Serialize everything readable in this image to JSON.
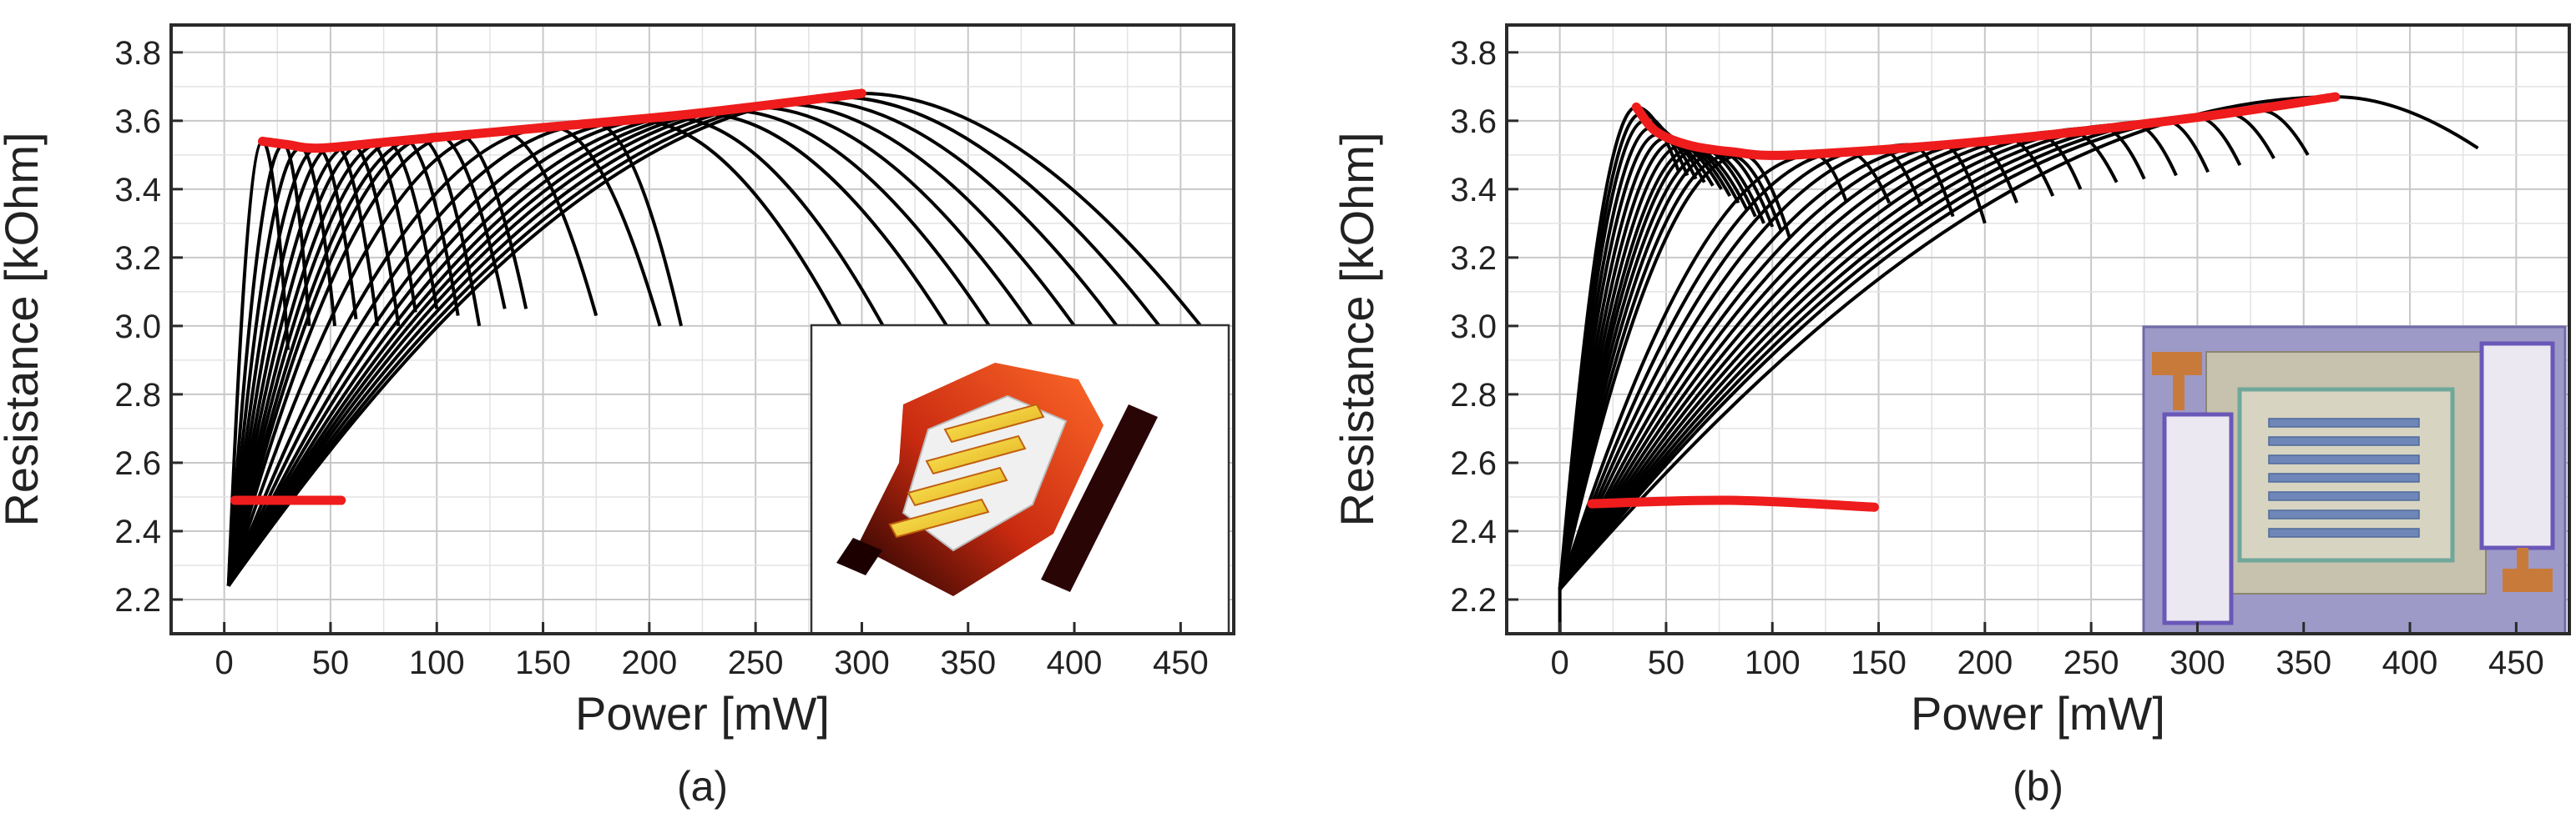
{
  "chart_data": [
    {
      "type": "line",
      "panel_label": "(a)",
      "xlabel": "Power [mW]",
      "ylabel": "Resistance [kOhm]",
      "xlim": [
        -25,
        475
      ],
      "ylim": [
        2.1,
        3.88
      ],
      "x_ticks": [
        0,
        50,
        100,
        150,
        200,
        250,
        300,
        350,
        400,
        450
      ],
      "y_ticks": [
        2.2,
        2.4,
        2.6,
        2.8,
        3.0,
        3.2,
        3.4,
        3.6,
        3.8
      ],
      "grid": true,
      "curve_color": "#000000",
      "envelope_color": "#ee1c1c",
      "start_point": [
        2,
        2.24
      ],
      "curves": [
        [
          [
            18,
            3.54
          ],
          [
            30,
            2.93
          ]
        ],
        [
          [
            28,
            3.53
          ],
          [
            40,
            3.0
          ]
        ],
        [
          [
            36,
            3.52
          ],
          [
            52,
            3.0
          ]
        ],
        [
          [
            44,
            3.52
          ],
          [
            62,
            3.02
          ]
        ],
        [
          [
            52,
            3.53
          ],
          [
            72,
            3.0
          ]
        ],
        [
          [
            60,
            3.53
          ],
          [
            82,
            3.0
          ]
        ],
        [
          [
            68,
            3.54
          ],
          [
            90,
            3.04
          ]
        ],
        [
          [
            76,
            3.54
          ],
          [
            100,
            3.05
          ]
        ],
        [
          [
            84,
            3.55
          ],
          [
            110,
            3.03
          ]
        ],
        [
          [
            92,
            3.55
          ],
          [
            120,
            3.0
          ]
        ],
        [
          [
            100,
            3.56
          ],
          [
            132,
            3.05
          ]
        ],
        [
          [
            110,
            3.56
          ],
          [
            142,
            3.05
          ]
        ],
        [
          [
            130,
            3.57
          ],
          [
            175,
            3.03
          ]
        ],
        [
          [
            155,
            3.58
          ],
          [
            205,
            3.0
          ]
        ],
        [
          [
            175,
            3.59
          ],
          [
            215,
            3.0
          ]
        ],
        [
          [
            195,
            3.6
          ],
          [
            290,
            3.0
          ]
        ],
        [
          [
            210,
            3.61
          ],
          [
            310,
            3.0
          ]
        ],
        [
          [
            225,
            3.62
          ],
          [
            340,
            3.0
          ]
        ],
        [
          [
            238,
            3.63
          ],
          [
            360,
            3.0
          ]
        ],
        [
          [
            250,
            3.64
          ],
          [
            380,
            3.0
          ]
        ],
        [
          [
            262,
            3.65
          ],
          [
            400,
            3.0
          ]
        ],
        [
          [
            275,
            3.66
          ],
          [
            420,
            3.0
          ]
        ],
        [
          [
            288,
            3.67
          ],
          [
            440,
            3.0
          ]
        ],
        [
          [
            300,
            3.68
          ],
          [
            462,
            2.98
          ]
        ]
      ],
      "envelope_top": [
        [
          18,
          3.54
        ],
        [
          30,
          3.53
        ],
        [
          45,
          3.52
        ],
        [
          80,
          3.54
        ],
        [
          150,
          3.58
        ],
        [
          220,
          3.62
        ],
        [
          300,
          3.68
        ]
      ],
      "envelope_bottom": [
        [
          5,
          2.49
        ],
        [
          55,
          2.49
        ]
      ],
      "inset": {
        "kind": "heat-map rendering of the heater"
      }
    },
    {
      "type": "line",
      "panel_label": "(b)",
      "xlabel": "Power [mW]",
      "ylabel": "Resistance [kOhm]",
      "xlim": [
        -25,
        475
      ],
      "ylim": [
        2.1,
        3.88
      ],
      "x_ticks": [
        0,
        50,
        100,
        150,
        200,
        250,
        300,
        350,
        400,
        450
      ],
      "y_ticks": [
        2.2,
        2.4,
        2.6,
        2.8,
        3.0,
        3.2,
        3.4,
        3.6,
        3.8
      ],
      "grid": true,
      "curve_color": "#000000",
      "envelope_color": "#ee1c1c",
      "start_point": [
        0,
        2.23
      ],
      "curves": [
        [
          [
            36,
            3.64
          ],
          [
            56,
            3.45
          ]
        ],
        [
          [
            38,
            3.62
          ],
          [
            60,
            3.44
          ]
        ],
        [
          [
            40,
            3.6
          ],
          [
            64,
            3.43
          ]
        ],
        [
          [
            43,
            3.58
          ],
          [
            68,
            3.42
          ]
        ],
        [
          [
            46,
            3.56
          ],
          [
            72,
            3.41
          ]
        ],
        [
          [
            50,
            3.55
          ],
          [
            76,
            3.4
          ]
        ],
        [
          [
            54,
            3.54
          ],
          [
            80,
            3.38
          ]
        ],
        [
          [
            58,
            3.53
          ],
          [
            84,
            3.36
          ]
        ],
        [
          [
            62,
            3.52
          ],
          [
            88,
            3.34
          ]
        ],
        [
          [
            66,
            3.52
          ],
          [
            92,
            3.32
          ]
        ],
        [
          [
            70,
            3.51
          ],
          [
            96,
            3.3
          ]
        ],
        [
          [
            75,
            3.51
          ],
          [
            100,
            3.29
          ]
        ],
        [
          [
            80,
            3.5
          ],
          [
            104,
            3.28
          ]
        ],
        [
          [
            86,
            3.5
          ],
          [
            108,
            3.26
          ]
        ],
        [
          [
            120,
            3.5
          ],
          [
            135,
            3.36
          ]
        ],
        [
          [
            135,
            3.51
          ],
          [
            155,
            3.36
          ]
        ],
        [
          [
            150,
            3.52
          ],
          [
            170,
            3.35
          ]
        ],
        [
          [
            165,
            3.53
          ],
          [
            185,
            3.32
          ]
        ],
        [
          [
            180,
            3.53
          ],
          [
            200,
            3.3
          ]
        ],
        [
          [
            195,
            3.54
          ],
          [
            215,
            3.36
          ]
        ],
        [
          [
            210,
            3.55
          ],
          [
            232,
            3.38
          ]
        ],
        [
          [
            225,
            3.56
          ],
          [
            245,
            3.4
          ]
        ],
        [
          [
            240,
            3.57
          ],
          [
            262,
            3.42
          ]
        ],
        [
          [
            255,
            3.58
          ],
          [
            275,
            3.43
          ]
        ],
        [
          [
            270,
            3.59
          ],
          [
            290,
            3.44
          ]
        ],
        [
          [
            285,
            3.6
          ],
          [
            305,
            3.45
          ]
        ],
        [
          [
            300,
            3.61
          ],
          [
            320,
            3.47
          ]
        ],
        [
          [
            315,
            3.62
          ],
          [
            336,
            3.49
          ]
        ],
        [
          [
            330,
            3.63
          ],
          [
            352,
            3.5
          ]
        ],
        [
          [
            365,
            3.67
          ],
          [
            432,
            3.52
          ]
        ]
      ],
      "envelope_top": [
        [
          36,
          3.64
        ],
        [
          45,
          3.57
        ],
        [
          60,
          3.53
        ],
        [
          80,
          3.51
        ],
        [
          110,
          3.5
        ],
        [
          200,
          3.54
        ],
        [
          300,
          3.61
        ],
        [
          365,
          3.67
        ]
      ],
      "envelope_bottom": [
        [
          15,
          2.48
        ],
        [
          80,
          2.49
        ],
        [
          148,
          2.47
        ]
      ],
      "inset": {
        "kind": "micrograph of the serpentine microheater"
      }
    }
  ]
}
